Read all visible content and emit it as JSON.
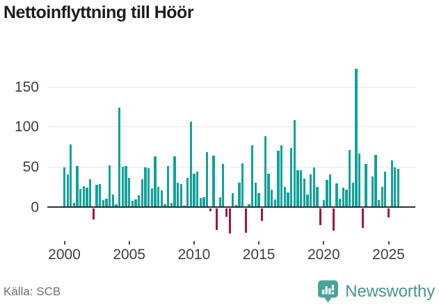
{
  "title": "Nettoinflyttning till Höör",
  "source": "Källa: SCB",
  "branding": {
    "name": "Newsworthy",
    "icon": "newsworthy-bar-chart-bubble-icon"
  },
  "colors": {
    "positive": "#10a29a",
    "negative": "#a01544",
    "grid": "#e4e4e4",
    "zero_line": "#2e2e2e",
    "axis_text": "#3f3f3f",
    "title_text": "#1c1c1b",
    "source_text": "#6e6e6e",
    "brand_teal": "#47958f",
    "background": "#ffffff"
  },
  "chart_data": {
    "type": "bar",
    "title": "Nettoinflyttning till Höör",
    "x_unit": "quarter",
    "start_year": 2000,
    "end_year": 2025,
    "x_tick_labels": [
      "2000",
      "2005",
      "2010",
      "2015",
      "2020",
      "2025"
    ],
    "x_tick_quarter_interval": 20,
    "y_ticks": [
      0,
      50,
      100,
      150
    ],
    "ylim": [
      -40,
      180
    ],
    "grid": "horizontal",
    "legend": "none",
    "series": [
      {
        "name": "Nettoinflyttning",
        "values": [
          49,
          40,
          78,
          5,
          51,
          22,
          26,
          24,
          34,
          -14,
          27,
          28,
          8,
          10,
          52,
          15,
          3,
          124,
          50,
          51,
          36,
          7,
          9,
          14,
          34,
          49,
          48,
          23,
          63,
          25,
          20,
          3,
          51,
          5,
          63,
          30,
          28,
          1,
          36,
          106,
          41,
          44,
          11,
          12,
          68,
          -4,
          64,
          -27,
          12,
          53,
          -11,
          -32,
          17,
          2,
          30,
          54,
          -31,
          3,
          77,
          30,
          17,
          -16,
          88,
          41,
          21,
          9,
          70,
          77,
          25,
          18,
          73,
          108,
          46,
          46,
          35,
          15,
          40,
          49,
          25,
          -21,
          8,
          33,
          40,
          -28,
          29,
          10,
          24,
          21,
          71,
          30,
          172,
          66,
          -25,
          53,
          0,
          38,
          65,
          8,
          25,
          44,
          -12,
          58,
          49,
          47
        ]
      }
    ]
  }
}
